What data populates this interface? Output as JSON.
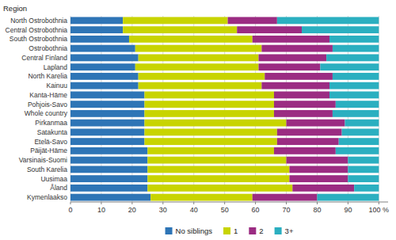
{
  "chart_data": {
    "type": "bar",
    "orientation": "horizontal",
    "stacked": true,
    "y_label": "Region",
    "categories": [
      "Kymenlaakso",
      "Åland",
      "Uusimaa",
      "South Karelia",
      "Varsinais-Suomi",
      "Päijät-Häme",
      "Etelä-Savo",
      "Satakunta",
      "Pirkanmaa",
      "Whole country",
      "Pohjois-Savo",
      "Kanta-Häme",
      "Kainuu",
      "North Karelia",
      "Lapland",
      "Central Finland",
      "Ostrobothnia",
      "South Ostrobothnia",
      "Central Ostrobothnia",
      "North Ostrobothnia"
    ],
    "series": [
      {
        "name": "No siblings",
        "color": "#2E75B6",
        "values": [
          26,
          25,
          25,
          25,
          25,
          25,
          24,
          24,
          24,
          24,
          24,
          24,
          22,
          22,
          21,
          22,
          21,
          19,
          17,
          17
        ]
      },
      {
        "name": "1",
        "color": "#C8D400",
        "values": [
          33,
          47,
          46,
          46,
          45,
          41,
          43,
          43,
          46,
          42,
          42,
          42,
          40,
          41,
          40,
          39,
          41,
          40,
          37,
          34
        ]
      },
      {
        "name": "2",
        "color": "#9B2C82",
        "values": [
          21,
          20,
          19,
          19,
          20,
          20,
          20,
          21,
          19,
          19,
          20,
          18,
          22,
          22,
          20,
          22,
          23,
          25,
          21,
          16
        ]
      },
      {
        "name": "3+",
        "color": "#2BAFC0",
        "values": [
          20,
          8,
          10,
          10,
          10,
          14,
          13,
          12,
          11,
          15,
          14,
          16,
          16,
          15,
          19,
          17,
          15,
          16,
          25,
          33
        ]
      }
    ],
    "xlim": [
      0,
      103
    ],
    "xticks": [
      0,
      10,
      20,
      30,
      40,
      50,
      60,
      70,
      80,
      90,
      {
        "value": 100,
        "label": "100 %"
      }
    ],
    "grid": true,
    "legend": "bottom"
  }
}
